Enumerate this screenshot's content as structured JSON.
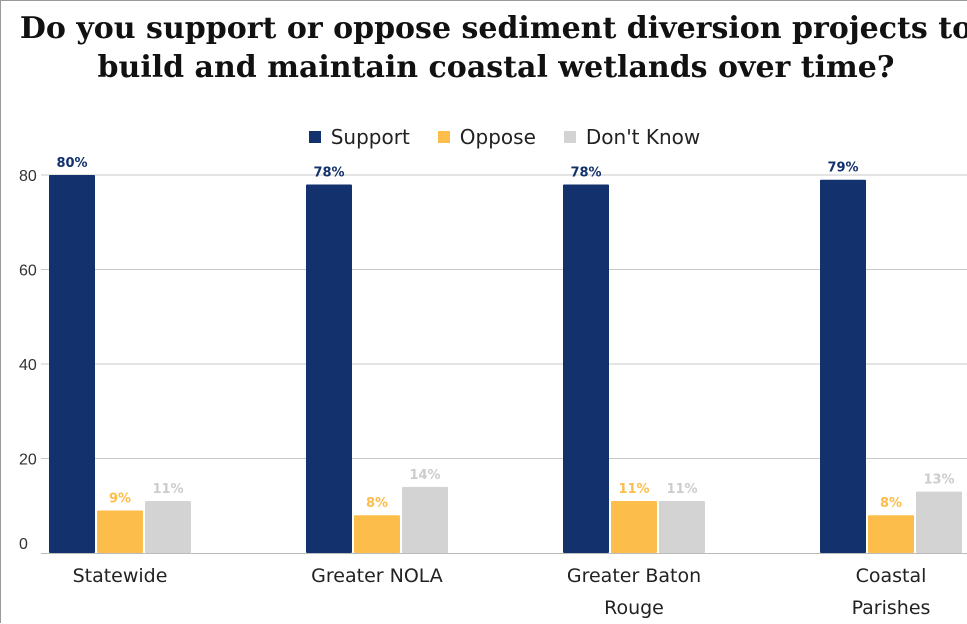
{
  "chart_data": {
    "type": "bar",
    "title": "Do you support or oppose sediment diversion projects to build and maintain coastal wetlands over time?",
    "categories": [
      "Statewide",
      "Greater NOLA",
      "Greater Baton Rouge",
      "Coastal Parishes"
    ],
    "category_lines": [
      [
        "Statewide"
      ],
      [
        "Greater NOLA"
      ],
      [
        "Greater Baton",
        "Rouge"
      ],
      [
        "Coastal",
        "Parishes"
      ]
    ],
    "series": [
      {
        "name": "Support",
        "values": [
          80,
          78,
          78,
          79
        ],
        "color": "#13316d",
        "label_color": "#13316d"
      },
      {
        "name": "Oppose",
        "values": [
          9,
          8,
          11,
          8
        ],
        "color": "#fdbd4a",
        "label_color": "#fdbd4a"
      },
      {
        "name": "Don't Know",
        "values": [
          11,
          14,
          11,
          13
        ],
        "color": "#d3d3d3",
        "label_color": "#cccccc"
      }
    ],
    "value_suffix": "%",
    "ylim": [
      0,
      80
    ],
    "yticks": [
      0,
      20,
      40,
      60,
      80
    ],
    "xlabel": "",
    "ylabel": "",
    "grid": true,
    "legend_position": "top"
  }
}
